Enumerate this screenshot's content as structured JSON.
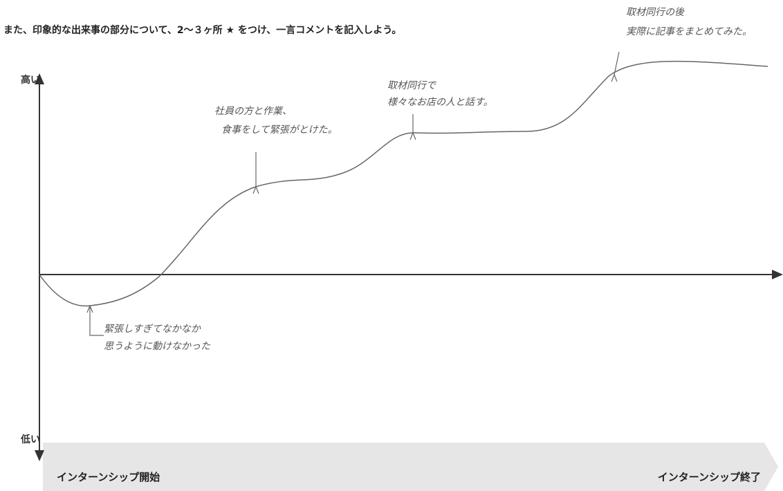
{
  "header": {
    "instruction": "また、印象的な出来事の部分について、2～３ヶ所 ★ をつけ、一言コメントを記入しよう。"
  },
  "axis": {
    "high": "高い",
    "low": "低い"
  },
  "timeline": {
    "start": "インターンシップ開始",
    "end": "インターンシップ終了"
  },
  "annotations": [
    {
      "lines": [
        "緊張しすぎてなかなか",
        "思うように動けなかった"
      ]
    },
    {
      "lines": [
        "社員の方と作業、",
        "食事をして緊張がとけた。"
      ]
    },
    {
      "lines": [
        "取材同行で",
        "様々なお店の人と話す。"
      ]
    },
    {
      "lines": [
        "取材同行の後",
        "実際に記事をまとめてみた。"
      ]
    }
  ]
}
